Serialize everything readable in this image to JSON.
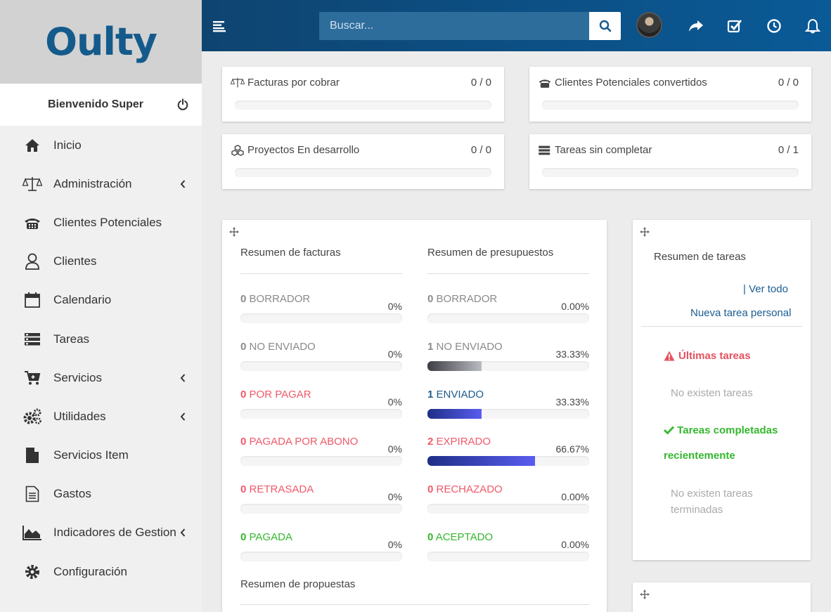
{
  "brand": {
    "logo_text": "Oulty",
    "color": "#145b8c"
  },
  "sidebar": {
    "welcome": "Bienvenido Super",
    "items": [
      {
        "label": "Inicio",
        "icon": "home-icon",
        "chevron": false
      },
      {
        "label": "Administración",
        "icon": "scale-icon",
        "chevron": true
      },
      {
        "label": "Clientes Potenciales",
        "icon": "phone-icon",
        "chevron": false
      },
      {
        "label": "Clientes",
        "icon": "user-icon",
        "chevron": false
      },
      {
        "label": "Calendario",
        "icon": "calendar-icon",
        "chevron": false
      },
      {
        "label": "Tareas",
        "icon": "tasks-icon",
        "chevron": false
      },
      {
        "label": "Servicios",
        "icon": "cart-icon",
        "chevron": true
      },
      {
        "label": "Utilidades",
        "icon": "gears-icon",
        "chevron": true
      },
      {
        "label": "Servicios Item",
        "icon": "file-icon",
        "chevron": false
      },
      {
        "label": "Gastos",
        "icon": "document-icon",
        "chevron": false
      },
      {
        "label": "Indicadores de Gestion",
        "icon": "area-chart-icon",
        "chevron": true
      },
      {
        "label": "Configuración",
        "icon": "gear-icon",
        "chevron": false
      }
    ]
  },
  "topbar": {
    "search_placeholder": "Buscar...",
    "icons": [
      "share-icon",
      "check-square-icon",
      "clock-icon",
      "bell-icon"
    ]
  },
  "stats": [
    {
      "title": "Facturas por cobrar",
      "value": "0 / 0",
      "icon": "scale-icon"
    },
    {
      "title": "Clientes Potenciales convertidos",
      "value": "0 / 0",
      "icon": "phone-icon"
    },
    {
      "title": "Proyectos En desarrollo",
      "value": "0 / 0",
      "icon": "cubes-icon"
    },
    {
      "title": "Tareas sin completar",
      "value": "0 / 1",
      "icon": "tasks-icon"
    }
  ],
  "invoices": {
    "title": "Resumen de facturas",
    "rows": [
      {
        "count": "0",
        "label": "BORRADOR",
        "pct": "0%",
        "fill": 0,
        "color": "gray"
      },
      {
        "count": "0",
        "label": "NO ENVIADO",
        "pct": "0%",
        "fill": 0,
        "color": "gray"
      },
      {
        "count": "0",
        "label": "POR PAGAR",
        "pct": "0%",
        "fill": 0,
        "color": "red"
      },
      {
        "count": "0",
        "label": "PAGADA POR ABONO",
        "pct": "0%",
        "fill": 0,
        "color": "red"
      },
      {
        "count": "0",
        "label": "RETRASADA",
        "pct": "0%",
        "fill": 0,
        "color": "red"
      },
      {
        "count": "0",
        "label": "PAGADA",
        "pct": "0%",
        "fill": 0,
        "color": "green"
      }
    ]
  },
  "estimates": {
    "title": "Resumen de presupuestos",
    "rows": [
      {
        "count": "0",
        "label": "BORRADOR",
        "pct": "0.00%",
        "fill": 0,
        "color": "gray"
      },
      {
        "count": "1",
        "label": "NO ENVIADO",
        "pct": "33.33%",
        "fill": 33.33,
        "color": "gray"
      },
      {
        "count": "1",
        "label": "ENVIADO",
        "pct": "33.33%",
        "fill": 33.33,
        "color": "blue"
      },
      {
        "count": "2",
        "label": "EXPIRADO",
        "pct": "66.67%",
        "fill": 66.67,
        "color": "red"
      },
      {
        "count": "0",
        "label": "RECHAZADO",
        "pct": "0.00%",
        "fill": 0,
        "color": "red"
      },
      {
        "count": "0",
        "label": "ACEPTADO",
        "pct": "0.00%",
        "fill": 0,
        "color": "green"
      }
    ]
  },
  "proposals_title": "Resumen de propuestas",
  "tasks": {
    "title": "Resumen de tareas",
    "view_all": "| Ver todo",
    "new_task": "Nueva tarea personal",
    "latest_title": "Últimas tareas",
    "latest_empty": "No existen tareas",
    "completed_title": "Tareas completadas recientemente",
    "completed_empty": "No existen tareas terminadas"
  },
  "colors": {
    "gray": "#8a8a8a",
    "red": "#f0596b",
    "blue": "#1c5c8e",
    "green": "#35b72e"
  }
}
